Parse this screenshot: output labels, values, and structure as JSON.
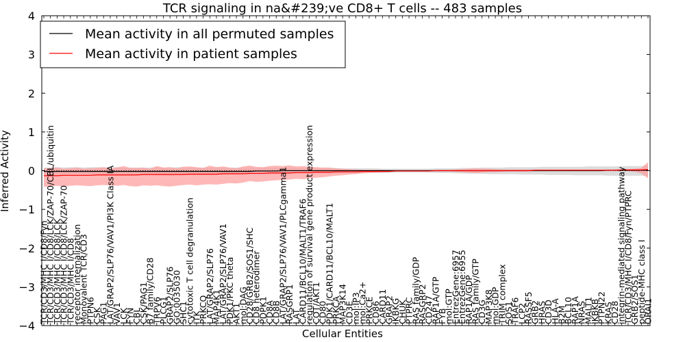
{
  "chart_data": {
    "type": "line",
    "title": "TCR signaling in na&#239;ve CD8+ T cells -- 483 samples",
    "xlabel": "Cellular Entities",
    "ylabel": "Inferred Activity",
    "ylim": [
      -4,
      4
    ],
    "yticks": [
      -4,
      -3,
      -2,
      -1,
      0,
      1,
      2,
      3,
      4
    ],
    "legend_position": "top-left",
    "categories": [
      "TCR/CD3/MHC I/CD8/Fyn",
      "TCR/CD3/MHC I/CD8/LCK/ZAP-70/CBL/ubiquitin",
      "TCR/CD3/MHC I/CD8/LCK",
      "TCR/CD3/MHC I/CD8/LCK/ZAP-70",
      "TCR/CD3/MHC I/CD8",
      "receptor internalization",
      "Monovalent TCR/CD3",
      "PTPN6",
      "CSK",
      "PAG1",
      "LAT/GRAP2/SLP76/VAV1/PI3K Class IA",
      "VAV1",
      "LCK",
      "FYN",
      "CBL",
      "CSK/PAG1",
      "B7 family/CD28",
      "TRPV6",
      "PLCG1",
      "GRAP2/SLP76",
      "GO:0035030",
      "SHC1",
      "cytotoxic T cell degranulation",
      "ITK",
      "PRKCQ",
      "LAT/GRAP2/SLP76",
      "MAP4K1",
      "LAT/GRAP2/SLP76/VAV1",
      "PDK1/PKC theta",
      "AKT1",
      "mol:DAG",
      "CD28/GRB2/SOS1/SHC",
      "CD8 heterodimer",
      "PDPK1",
      "CD8A",
      "CD8B",
      "LAT/GRAP2/SLP76/VAV1/PLCgamma1",
      "RASGRP1",
      "LAT",
      "CARD11/BCL10/MALT1/TRAF6",
      "regulation of survival gene product expression",
      "COT/AKT1",
      "CD80",
      "PDK1/CARD11/BCL10/MALT1",
      "PRKCA",
      "MAP3K14",
      "CD3E",
      "mol:IP3",
      "mol:Ca2+",
      "PRKCE",
      "CD86",
      "CARD11",
      "GRAP2",
      "IKBKG",
      "CHUK",
      "PTPRC",
      "RAS family/GDP",
      "RASGRP2",
      "CD247",
      "RAP1A/GTP",
      "FYB",
      "mol:GTP",
      "EntrezGene:6957",
      "EntrezGene:6955",
      "RAP1A/GDP",
      "RAS family/GTP",
      "CD3G",
      "MAP3K8",
      "mol:GDP",
      "TRIM complex",
      "SOS1",
      "TRAF6",
      "LCP2",
      "RASSF5",
      "GRB2",
      "HRAS",
      "CD3D",
      "HLA-A",
      "B2M",
      "BCL10",
      "RAP1A",
      "NRAS",
      "MALT1",
      "IKBKB",
      "PTPN22",
      "KRAS",
      "CD28",
      "integrin-mediated signaling pathway",
      "TCR/CD3/MHC I/CD8/Fyn/PTPRC",
      "GRB2/SOS1",
      "peptide-MHC class I",
      "ORAI1"
    ],
    "series": [
      {
        "name": "Mean activity in all permuted samples",
        "color": "#000000",
        "band_color": "#c0c0c0",
        "mean": [
          -0.02,
          -0.02,
          -0.02,
          -0.02,
          -0.02,
          -0.02,
          -0.02,
          -0.02,
          -0.02,
          -0.02,
          -0.02,
          -0.02,
          -0.02,
          -0.02,
          -0.02,
          -0.02,
          -0.02,
          -0.02,
          -0.02,
          -0.02,
          -0.02,
          -0.02,
          -0.02,
          -0.02,
          -0.02,
          -0.02,
          -0.02,
          -0.02,
          -0.02,
          -0.02,
          -0.02,
          -0.02,
          -0.01,
          -0.01,
          -0.01,
          -0.01,
          0.0,
          0.0,
          0.0,
          0.0,
          0.0,
          0.0,
          0.0,
          0.0,
          0.0,
          0.0,
          0.0,
          0.0,
          0.0,
          0.0,
          0.0,
          0.0,
          0.0,
          0.0,
          0.0,
          0.0,
          0.0,
          0.0,
          0.0,
          0.0,
          0.0,
          0.0,
          0.0,
          0.0,
          0.0,
          0.0,
          0.0,
          0.0,
          0.0,
          0.0,
          0.0,
          0.0,
          0.0,
          0.0,
          0.0,
          0.0,
          0.0,
          0.0,
          0.0,
          0.0,
          0.0,
          0.0,
          0.0,
          0.0,
          0.0,
          0.01,
          0.01,
          0.01,
          0.01,
          0.01,
          0.01,
          0.01
        ],
        "lower": [
          -0.12,
          -0.11,
          -0.11,
          -0.12,
          -0.1,
          -0.09,
          -0.1,
          -0.1,
          -0.11,
          -0.1,
          -0.1,
          -0.12,
          -0.11,
          -0.12,
          -0.11,
          -0.12,
          -0.11,
          -0.12,
          -0.12,
          -0.13,
          -0.12,
          -0.12,
          -0.12,
          -0.12,
          -0.12,
          -0.12,
          -0.12,
          -0.11,
          -0.1,
          -0.11,
          -0.1,
          -0.11,
          -0.1,
          -0.1,
          -0.1,
          -0.1,
          -0.09,
          -0.09,
          -0.09,
          -0.09,
          -0.08,
          -0.08,
          -0.08,
          -0.08,
          -0.08,
          -0.07,
          -0.07,
          -0.07,
          -0.06,
          -0.06,
          -0.06,
          -0.06,
          -0.06,
          -0.05,
          -0.05,
          -0.05,
          -0.05,
          -0.05,
          -0.05,
          -0.06,
          -0.06,
          -0.06,
          -0.07,
          -0.07,
          -0.08,
          -0.08,
          -0.08,
          -0.09,
          -0.09,
          -0.09,
          -0.09,
          -0.09,
          -0.1,
          -0.1,
          -0.1,
          -0.1,
          -0.11,
          -0.11,
          -0.11,
          -0.11,
          -0.12,
          -0.12,
          -0.12,
          -0.12,
          -0.12,
          -0.13,
          -0.13,
          -0.13,
          -0.13,
          -0.13,
          -0.13,
          -0.15
        ],
        "upper": [
          0.08,
          0.08,
          0.09,
          0.08,
          0.09,
          0.09,
          0.08,
          0.09,
          0.09,
          0.08,
          0.09,
          0.09,
          0.08,
          0.08,
          0.08,
          0.08,
          0.08,
          0.09,
          0.08,
          0.08,
          0.09,
          0.09,
          0.08,
          0.08,
          0.08,
          0.08,
          0.09,
          0.08,
          0.08,
          0.08,
          0.08,
          0.09,
          0.08,
          0.08,
          0.08,
          0.08,
          0.08,
          0.08,
          0.08,
          0.08,
          0.08,
          0.07,
          0.07,
          0.07,
          0.07,
          0.06,
          0.06,
          0.06,
          0.06,
          0.06,
          0.06,
          0.05,
          0.05,
          0.05,
          0.05,
          0.05,
          0.05,
          0.05,
          0.05,
          0.06,
          0.06,
          0.06,
          0.06,
          0.07,
          0.07,
          0.07,
          0.08,
          0.08,
          0.08,
          0.08,
          0.09,
          0.09,
          0.09,
          0.09,
          0.09,
          0.1,
          0.1,
          0.1,
          0.1,
          0.1,
          0.1,
          0.1,
          0.11,
          0.11,
          0.11,
          0.11,
          0.11,
          0.11,
          0.12,
          0.12,
          0.12,
          0.14
        ]
      },
      {
        "name": "Mean activity in patient samples",
        "color": "#ff0000",
        "band_color": "#ff9a9a",
        "mean": [
          -0.13,
          -0.13,
          -0.13,
          -0.12,
          -0.12,
          -0.12,
          -0.12,
          -0.12,
          -0.11,
          -0.11,
          -0.11,
          -0.11,
          -0.11,
          -0.11,
          -0.11,
          -0.1,
          -0.1,
          -0.1,
          -0.1,
          -0.1,
          -0.1,
          -0.1,
          -0.09,
          -0.09,
          -0.09,
          -0.09,
          -0.09,
          -0.08,
          -0.08,
          -0.08,
          -0.08,
          -0.07,
          -0.07,
          -0.07,
          -0.06,
          -0.06,
          -0.06,
          -0.06,
          -0.05,
          -0.05,
          -0.05,
          -0.04,
          -0.04,
          -0.04,
          -0.03,
          -0.03,
          -0.03,
          -0.03,
          -0.02,
          -0.02,
          -0.02,
          -0.02,
          -0.02,
          -0.01,
          -0.01,
          -0.01,
          -0.01,
          -0.01,
          -0.01,
          0.0,
          0.0,
          0.0,
          0.0,
          0.0,
          0.0,
          0.0,
          0.0,
          0.0,
          0.0,
          0.0,
          0.0,
          0.0,
          0.0,
          0.0,
          0.01,
          0.01,
          0.01,
          0.01,
          0.01,
          0.01,
          0.01,
          0.01,
          0.01,
          0.01,
          0.01,
          0.01,
          0.01,
          0.02,
          0.02,
          0.02,
          0.02,
          0.03
        ],
        "lower": [
          -0.42,
          -0.4,
          -0.39,
          -0.41,
          -0.39,
          -0.38,
          -0.39,
          -0.4,
          -0.38,
          -0.37,
          -0.38,
          -0.39,
          -0.37,
          -0.4,
          -0.41,
          -0.38,
          -0.39,
          -0.38,
          -0.4,
          -0.41,
          -0.39,
          -0.37,
          -0.36,
          -0.38,
          -0.36,
          -0.35,
          -0.36,
          -0.34,
          -0.32,
          -0.33,
          -0.31,
          -0.27,
          -0.29,
          -0.28,
          -0.26,
          -0.25,
          -0.24,
          -0.23,
          -0.21,
          -0.22,
          -0.2,
          -0.18,
          -0.17,
          -0.15,
          -0.13,
          -0.12,
          -0.1,
          -0.09,
          -0.07,
          -0.06,
          -0.05,
          -0.04,
          -0.03,
          -0.02,
          -0.02,
          -0.02,
          -0.02,
          -0.02,
          -0.02,
          -0.02,
          -0.02,
          -0.02,
          -0.03,
          -0.04,
          -0.05,
          -0.06,
          -0.05,
          -0.04,
          -0.04,
          -0.03,
          -0.02,
          -0.02,
          -0.02,
          -0.02,
          -0.01,
          -0.01,
          -0.01,
          -0.01,
          -0.01,
          -0.01,
          -0.01,
          -0.01,
          -0.01,
          -0.01,
          -0.01,
          -0.01,
          -0.01,
          -0.01,
          -0.01,
          -0.03,
          -0.07,
          -0.2
        ],
        "upper": [
          0.06,
          0.07,
          0.08,
          0.05,
          0.06,
          0.08,
          0.05,
          0.06,
          0.07,
          0.09,
          0.06,
          0.08,
          0.12,
          0.07,
          0.07,
          0.08,
          0.05,
          0.12,
          0.08,
          0.09,
          0.06,
          0.1,
          0.11,
          0.09,
          0.07,
          0.13,
          0.09,
          0.11,
          0.08,
          0.06,
          0.11,
          0.13,
          0.1,
          0.09,
          0.12,
          0.13,
          0.12,
          0.14,
          0.11,
          0.12,
          0.1,
          0.09,
          0.08,
          0.08,
          0.06,
          0.05,
          0.04,
          0.03,
          0.02,
          0.02,
          0.02,
          0.02,
          0.01,
          0.01,
          0.01,
          0.01,
          0.01,
          0.01,
          0.01,
          0.02,
          0.02,
          0.02,
          0.03,
          0.04,
          0.05,
          0.06,
          0.05,
          0.05,
          0.04,
          0.03,
          0.03,
          0.03,
          0.03,
          0.03,
          0.03,
          0.03,
          0.03,
          0.03,
          0.03,
          0.03,
          0.03,
          0.03,
          0.03,
          0.03,
          0.03,
          0.03,
          0.03,
          0.04,
          0.04,
          0.05,
          0.07,
          0.22
        ]
      }
    ]
  }
}
